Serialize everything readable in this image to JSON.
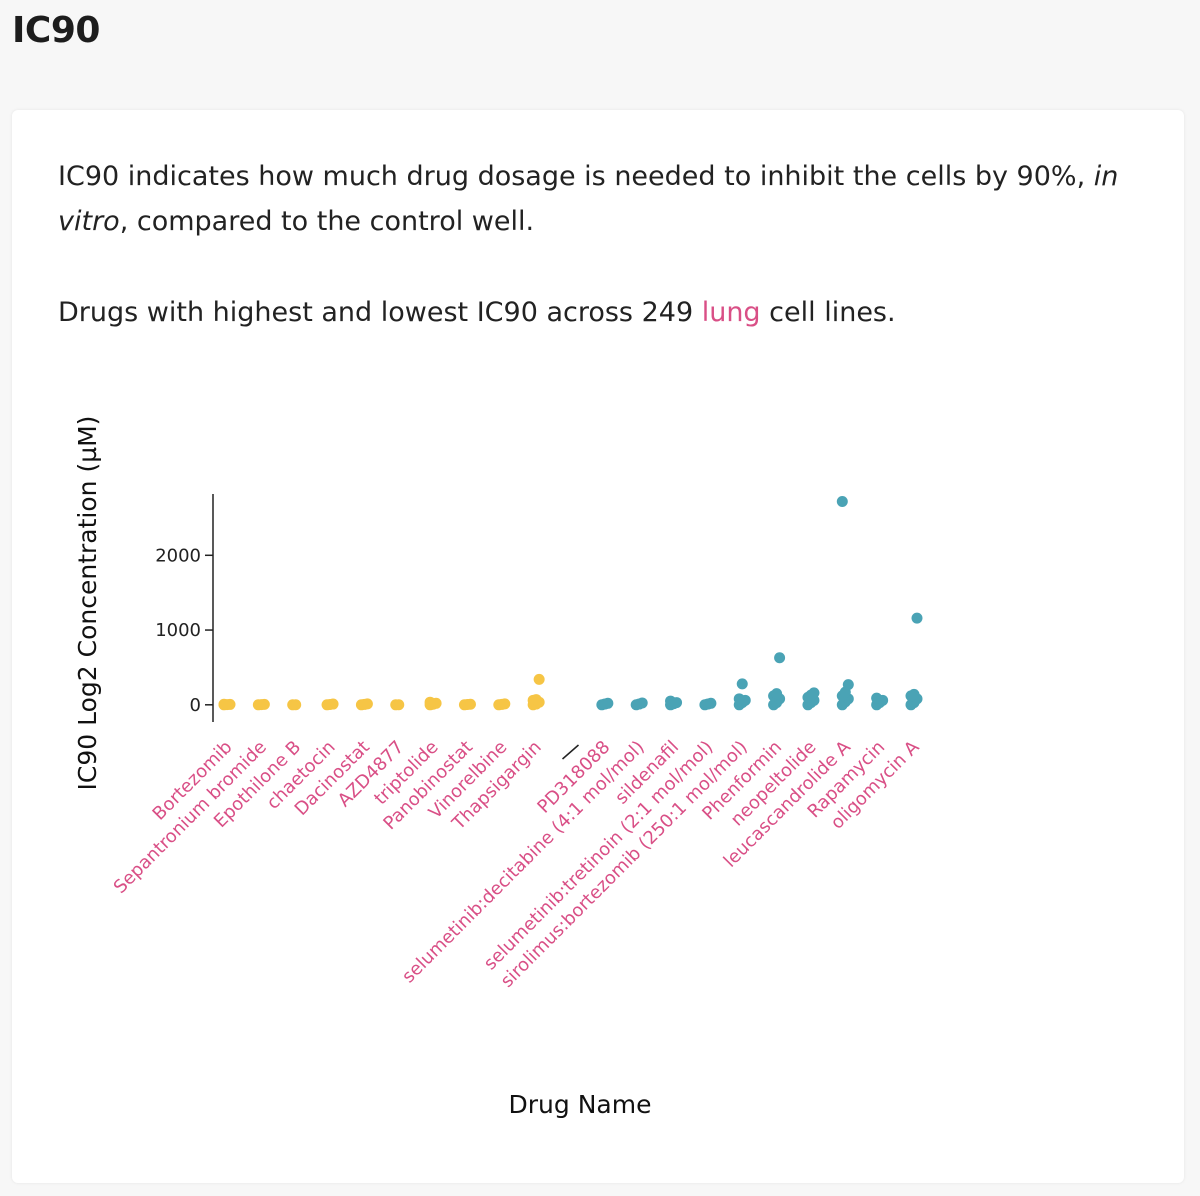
{
  "header": {
    "title": "IC90"
  },
  "description": {
    "line1_before": "IC90 indicates how much drug dosage is needed to inhibit the cells by 90%, ",
    "line1_italic": "in vitro",
    "line1_after": ", compared to the control well.",
    "line2_before": "Drugs with highest and lowest IC90 across 249 ",
    "line2_link": "lung",
    "line2_after": " cell lines."
  },
  "colors": {
    "low_group": "#f6c545",
    "high_group": "#4aa3b5",
    "label": "#d94f86"
  },
  "chart_data": {
    "type": "scatter",
    "title": "",
    "xlabel": "Drug Name",
    "ylabel": "IC90 Log2 Concentration (µM)",
    "ylim": [
      -230,
      2820
    ],
    "yticks": [
      0,
      1000,
      2000
    ],
    "ytick_labels": [
      "0",
      "1000",
      "2000"
    ],
    "categories": [
      "Bortezomib",
      "Sepantronium bromide",
      "Epothilone B",
      "chaetocin",
      "Dacinostat",
      "AZD4877",
      "triptolide",
      "Panobinostat",
      "Vinorelbine",
      "Thapsigargin",
      "—",
      "PD318088",
      "selumetinib:decitabine (4:1 mol/mol)",
      "sildenafil",
      "selumetinib:tretinoin (2:1 mol/mol)",
      "sirolimus:bortezomib (250:1 mol/mol)",
      "Phenformin",
      "neopeltolide",
      "leucascandrolide A",
      "Rapamycin",
      "oligomycin A"
    ],
    "series": [
      {
        "group": "lowest",
        "color": "#f6c545",
        "points": [
          {
            "drug": "Bortezomib",
            "values": [
              0,
              2,
              5,
              8
            ]
          },
          {
            "drug": "Sepantronium bromide",
            "values": [
              0,
              3,
              6
            ]
          },
          {
            "drug": "Epothilone B",
            "values": [
              0,
              1
            ]
          },
          {
            "drug": "chaetocin",
            "values": [
              0,
              4,
              10
            ]
          },
          {
            "drug": "Dacinostat",
            "values": [
              0,
              5,
              12
            ]
          },
          {
            "drug": "AZD4877",
            "values": [
              0,
              1
            ]
          },
          {
            "drug": "triptolide",
            "values": [
              0,
              8,
              20,
              35
            ]
          },
          {
            "drug": "Panobinostat",
            "values": [
              0,
              4,
              8
            ]
          },
          {
            "drug": "Vinorelbine",
            "values": [
              0,
              5,
              12
            ]
          },
          {
            "drug": "Thapsigargin",
            "values": [
              0,
              10,
              35,
              60,
              70,
              340
            ]
          }
        ]
      },
      {
        "group": "highest",
        "color": "#4aa3b5",
        "points": [
          {
            "drug": "PD318088",
            "values": [
              0,
              10,
              20
            ]
          },
          {
            "drug": "selumetinib:decitabine (4:1 mol/mol)",
            "values": [
              0,
              10,
              25
            ]
          },
          {
            "drug": "sildenafil",
            "values": [
              0,
              15,
              30,
              50
            ]
          },
          {
            "drug": "selumetinib:tretinoin (2:1 mol/mol)",
            "values": [
              0,
              10,
              20
            ]
          },
          {
            "drug": "sirolimus:bortezomib (250:1 mol/mol)",
            "values": [
              0,
              30,
              60,
              80,
              280
            ]
          },
          {
            "drug": "Phenformin",
            "values": [
              0,
              30,
              80,
              120,
              150,
              630
            ]
          },
          {
            "drug": "neopeltolide",
            "values": [
              0,
              30,
              60,
              100,
              130,
              160
            ]
          },
          {
            "drug": "leucascandrolide A",
            "values": [
              0,
              40,
              80,
              120,
              170,
              270,
              2720
            ]
          },
          {
            "drug": "Rapamycin",
            "values": [
              0,
              30,
              60,
              90
            ]
          },
          {
            "drug": "oligomycin A",
            "values": [
              0,
              30,
              80,
              120,
              140,
              1160
            ]
          }
        ]
      }
    ],
    "legend": "none",
    "grid": false
  }
}
